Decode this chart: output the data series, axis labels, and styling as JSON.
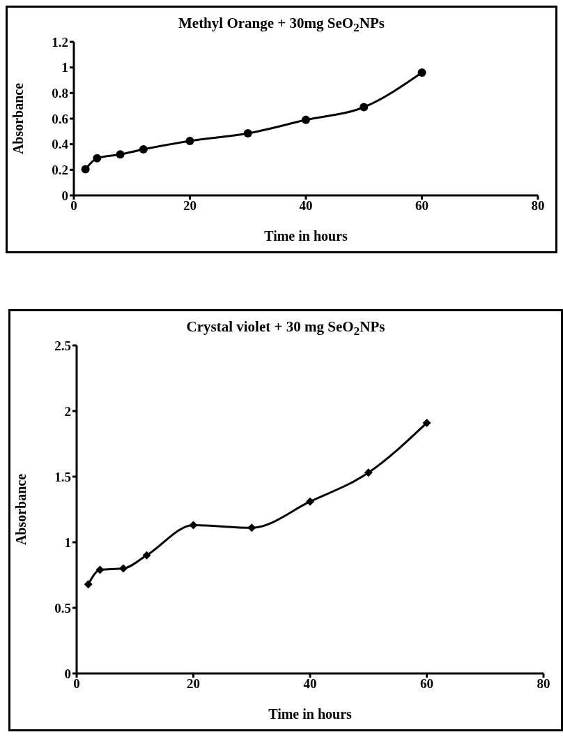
{
  "chart_data": [
    {
      "type": "line",
      "title": "Methyl Orange + 30mg SeO$_{2}$NPs",
      "xlabel": "Time in hours",
      "ylabel": "Absorbance",
      "x": [
        2,
        4,
        8,
        12,
        20,
        30,
        40,
        50,
        60
      ],
      "series": [
        {
          "color": "#000000",
          "values": [
            0.205,
            0.29,
            0.32,
            0.36,
            0.425,
            0.485,
            0.59,
            0.69,
            0.96
          ]
        }
      ],
      "xlim": [
        0,
        80
      ],
      "xticks": [
        0,
        20,
        40,
        60,
        80
      ],
      "ylim": [
        0,
        1.2
      ],
      "yticks": [
        0,
        0.2,
        0.4,
        0.6,
        0.8,
        1,
        1.2
      ],
      "marker": "circle",
      "line_style": "solid",
      "grid": false,
      "legend": false
    },
    {
      "type": "line",
      "title": "Crystal violet + 30 mg SeO$_{2}$NPs",
      "xlabel": "Time in hours",
      "ylabel": "Absorbance",
      "x": [
        2,
        4,
        8,
        12,
        20,
        30,
        40,
        50,
        60
      ],
      "series": [
        {
          "color": "#000000",
          "values": [
            0.68,
            0.79,
            0.8,
            0.9,
            1.13,
            1.11,
            1.31,
            1.53,
            1.91
          ]
        }
      ],
      "xlim": [
        0,
        80
      ],
      "xticks": [
        0,
        20,
        40,
        60,
        80
      ],
      "ylim": [
        0,
        2.5
      ],
      "yticks": [
        0,
        0.5,
        1,
        1.5,
        2,
        2.5
      ],
      "marker": "diamond",
      "line_style": "solid",
      "grid": false,
      "legend": false
    }
  ]
}
